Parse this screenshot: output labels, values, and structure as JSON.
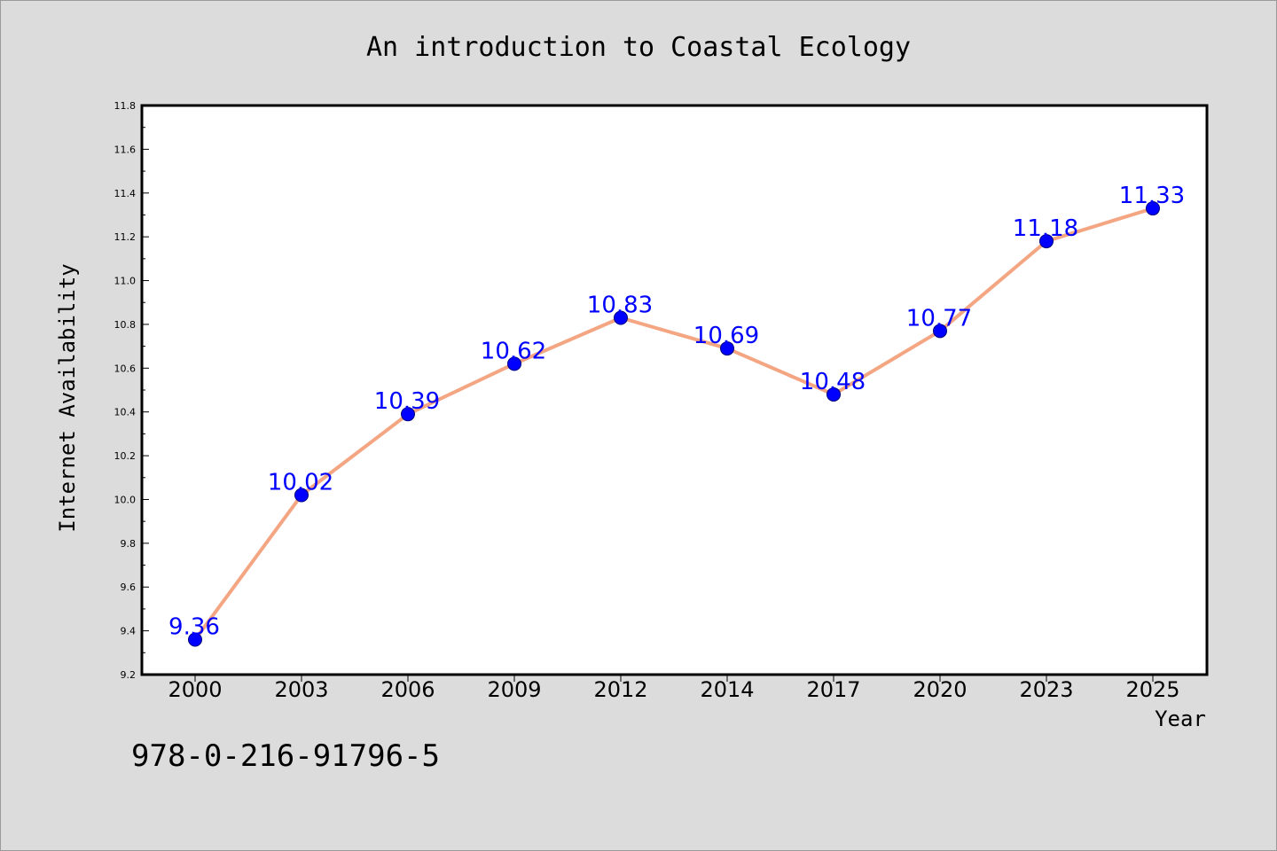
{
  "chart_data": {
    "type": "line",
    "title": "An introduction to Coastal Ecology",
    "xlabel": "Year",
    "ylabel": "Internet Availability",
    "categories": [
      "2000",
      "2003",
      "2006",
      "2009",
      "2012",
      "2014",
      "2017",
      "2020",
      "2023",
      "2025"
    ],
    "series": [
      {
        "values": [
          9.36,
          10.02,
          10.39,
          10.62,
          10.83,
          10.69,
          10.48,
          10.77,
          11.18,
          11.33
        ]
      }
    ],
    "data_labels": [
      "9.36",
      "10.02",
      "10.39",
      "10.62",
      "10.83",
      "10.69",
      "10.48",
      "10.77",
      "11.18",
      "11.33"
    ],
    "ylim": [
      9.2,
      11.8
    ],
    "yticks": [
      "9.2",
      "9.4",
      "9.6",
      "9.8",
      "10.0",
      "10.2",
      "10.4",
      "10.6",
      "10.8",
      "11.0",
      "11.2",
      "11.4",
      "11.6",
      "11.8"
    ],
    "grid": false,
    "legend": "none",
    "colors": {
      "line": "#f4a582",
      "marker": "#0000ff",
      "marker_edge": "#000080",
      "label": "#0000ff"
    }
  },
  "footer": {
    "isbn": "978-0-216-91796-5"
  }
}
